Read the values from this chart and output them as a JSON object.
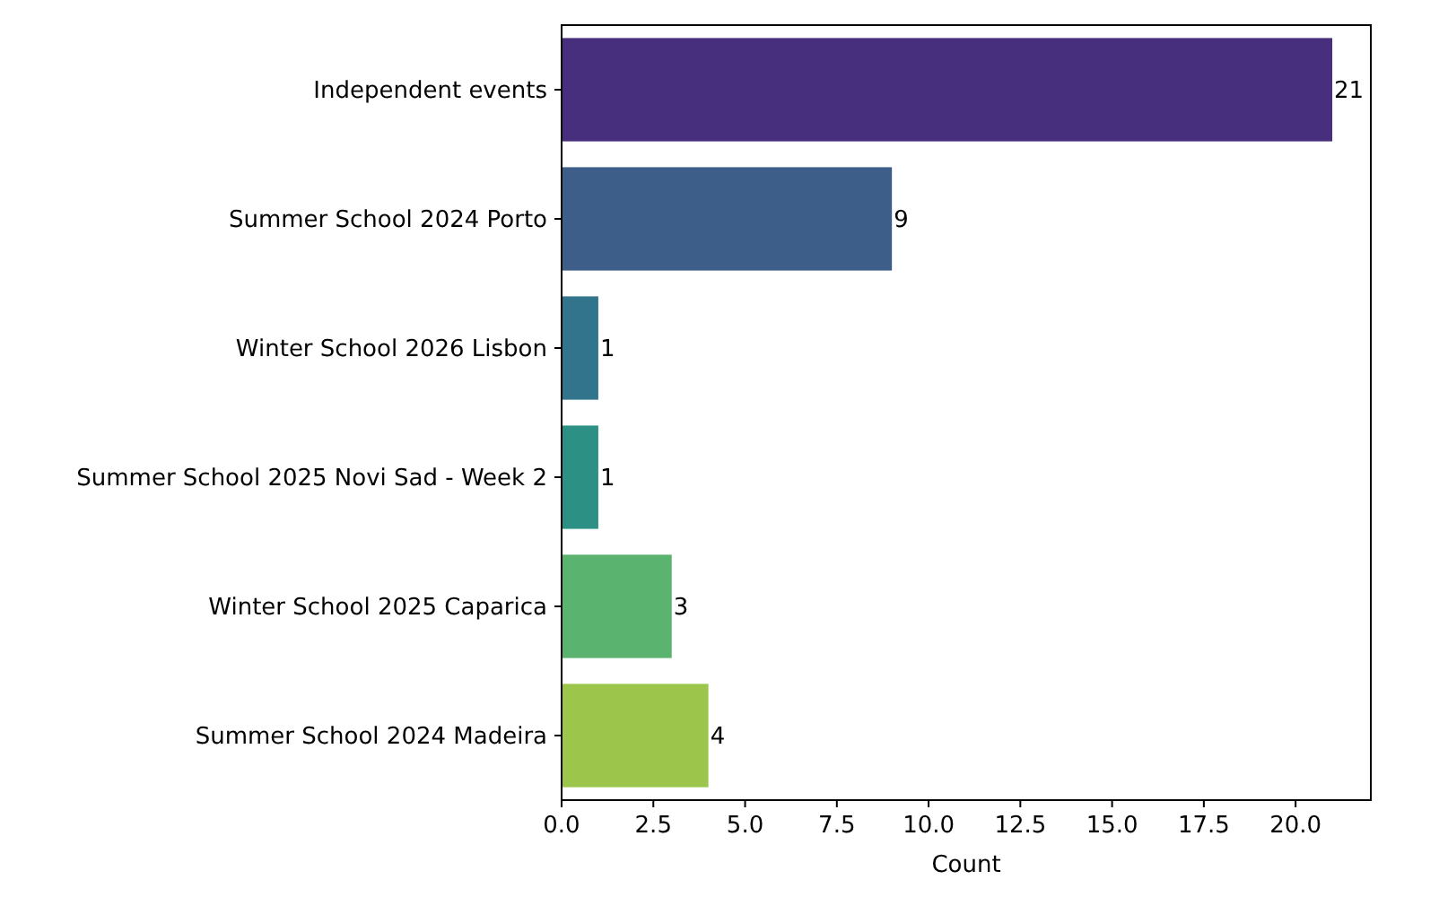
{
  "chart_data": {
    "type": "bar",
    "orientation": "horizontal",
    "xlabel": "Count",
    "categories": [
      "Independent events",
      "Summer School 2024 Porto",
      "Winter School 2026 Lisbon",
      "Summer School 2025 Novi Sad - Week 2",
      "Winter School 2025 Caparica",
      "Summer School 2024 Madeira"
    ],
    "values": [
      21,
      9,
      1,
      1,
      3,
      4
    ],
    "colors": [
      "#472f7d",
      "#3e5e8a",
      "#31748b",
      "#2c9184",
      "#5ab46f",
      "#9bc64b"
    ],
    "xlim": [
      0,
      22.05
    ],
    "xticks": [
      {
        "value": 0,
        "label": "0.0"
      },
      {
        "value": 2.5,
        "label": "2.5"
      },
      {
        "value": 5,
        "label": "5.0"
      },
      {
        "value": 7.5,
        "label": "7.5"
      },
      {
        "value": 10,
        "label": "10.0"
      },
      {
        "value": 12.5,
        "label": "12.5"
      },
      {
        "value": 15,
        "label": "15.0"
      },
      {
        "value": 17.5,
        "label": "17.5"
      },
      {
        "value": 20,
        "label": "20.0"
      }
    ],
    "data_labels": true
  }
}
